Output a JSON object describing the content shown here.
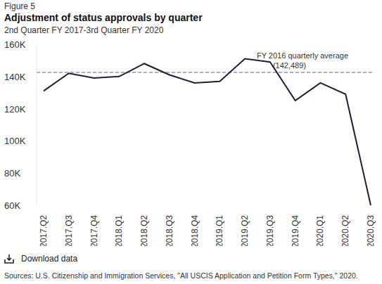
{
  "chart_data": {
    "type": "line",
    "figure_label": "Figure 5",
    "title": "Adjustment of status approvals by quarter",
    "subtitle": "2nd Quarter FY 2017-3rd Quarter FY 2020",
    "categories": [
      "2017.Q2",
      "2017.Q3",
      "2017.Q4",
      "2018.Q1",
      "2018.Q2",
      "2018.Q3",
      "2018.Q4",
      "2019.Q1",
      "2019.Q2",
      "2019.Q3",
      "2019.Q4",
      "2020.Q1",
      "2020.Q2",
      "2020.Q3"
    ],
    "values": [
      131000,
      142000,
      139000,
      140000,
      148000,
      141000,
      136000,
      137000,
      151000,
      149000,
      125000,
      136000,
      129000,
      60000
    ],
    "color": "#1f1d3a",
    "ylim": [
      60000,
      160000
    ],
    "yticks": [
      {
        "value": 60000,
        "label": "60K"
      },
      {
        "value": 80000,
        "label": "80K"
      },
      {
        "value": 100000,
        "label": "100K"
      },
      {
        "value": 120000,
        "label": "120K"
      },
      {
        "value": 140000,
        "label": "140K"
      },
      {
        "value": 160000,
        "label": "160K"
      }
    ],
    "grid": false,
    "reference_value": 142489,
    "reference_color": "#8e92c4",
    "annotation": [
      "FY 2016 quarterly average",
      "(142,489)"
    ],
    "download_label": "Download data",
    "source": "Sources: U.S. Citizenship and Immigration Services, \"All USCIS Application and Petition Form Types,\" 2020."
  }
}
